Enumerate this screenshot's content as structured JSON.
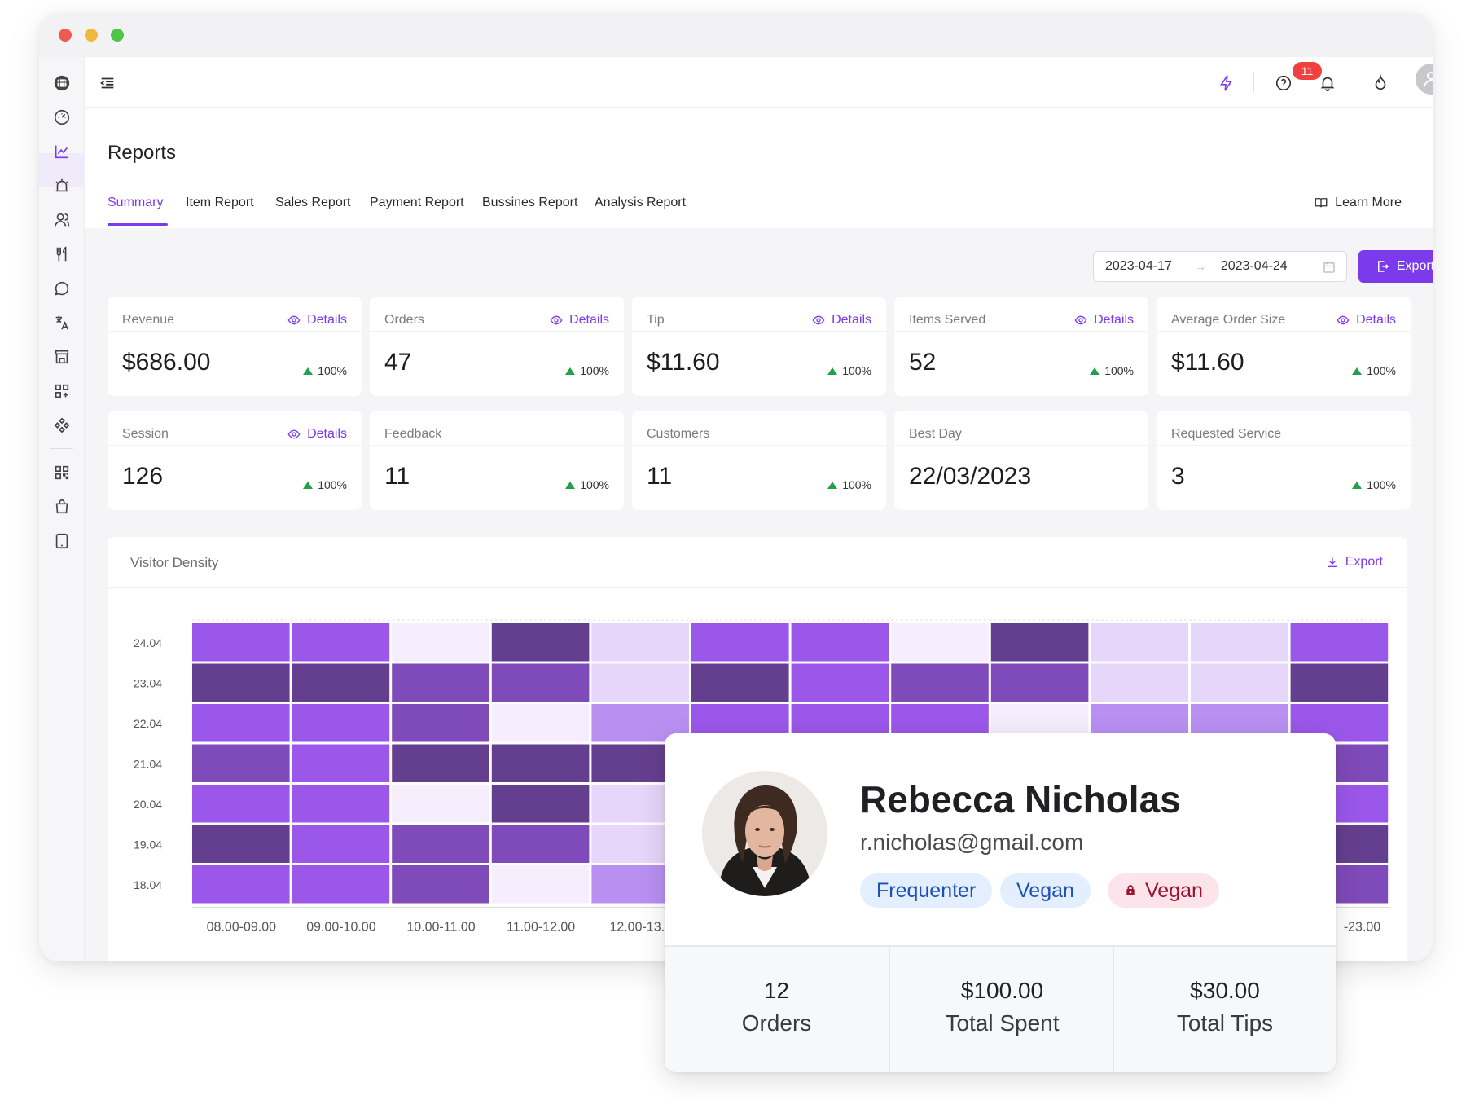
{
  "header": {
    "page_title": "Reports",
    "tabs": [
      {
        "label": "Summary",
        "active": true
      },
      {
        "label": "Item Report"
      },
      {
        "label": "Sales Report"
      },
      {
        "label": "Payment Report"
      },
      {
        "label": "Bussines Report"
      },
      {
        "label": "Analysis Report"
      }
    ],
    "learn_more": "Learn More"
  },
  "topbar": {
    "notification_count": "11",
    "icons": [
      "menu-collapse-icon",
      "lightning-icon",
      "help-circle-icon",
      "bell-icon",
      "flame-icon",
      "user-avatar-icon"
    ]
  },
  "sidebar": {
    "icons": [
      "logo-icon",
      "dashboard-gauge-icon",
      "chart-line-icon",
      "alarm-icon",
      "users-icon",
      "utensils-icon",
      "chat-icon",
      "translate-icon",
      "store-icon",
      "apps-grid-icon",
      "puzzle-icon",
      "qr-code-icon",
      "shopping-bag-icon",
      "tablet-icon"
    ],
    "active_index": 2
  },
  "filters": {
    "date_start": "2023-04-17",
    "date_end": "2023-04-24",
    "export_label": "Export"
  },
  "cards": [
    {
      "label": "Revenue",
      "value": "$686.00",
      "change": "100%",
      "details": "Details"
    },
    {
      "label": "Orders",
      "value": "47",
      "change": "100%",
      "details": "Details"
    },
    {
      "label": "Tip",
      "value": "$11.60",
      "change": "100%",
      "details": "Details"
    },
    {
      "label": "Items Served",
      "value": "52",
      "change": "100%",
      "details": "Details"
    },
    {
      "label": "Average Order Size",
      "value": "$11.60",
      "change": "100%",
      "details": "Details"
    },
    {
      "label": "Session",
      "value": "126",
      "change": "100%",
      "details": "Details"
    },
    {
      "label": "Feedback",
      "value": "11",
      "change": "100%"
    },
    {
      "label": "Customers",
      "value": "11",
      "change": "100%"
    },
    {
      "label": "Best Day",
      "value": "22/03/2023"
    },
    {
      "label": "Requested Service",
      "value": "3",
      "change": "100%"
    }
  ],
  "heatmap": {
    "title": "Visitor Density",
    "export_label": "Export"
  },
  "chart_data": {
    "type": "heatmap",
    "title": "Visitor Density",
    "x_labels_visible": [
      "08.00-09.00",
      "09.00-10.00",
      "10.00-11.00",
      "11.00-12.00",
      "12.00-13.0",
      "-23.00"
    ],
    "y_labels": [
      "24.04",
      "23.04",
      "22.04",
      "21.04",
      "20.04",
      "19.04",
      "18.04"
    ],
    "intensity_scale": "0 (lightest) to 5 (darkest)",
    "values": [
      [
        3,
        3,
        0,
        5,
        1,
        3,
        3,
        0,
        5,
        1,
        1,
        3
      ],
      [
        5,
        5,
        4,
        4,
        1,
        5,
        3,
        4,
        4,
        1,
        1,
        5
      ],
      [
        3,
        3,
        4,
        0,
        2,
        3,
        3,
        3,
        0,
        2,
        2,
        3
      ],
      [
        4,
        3,
        5,
        5,
        5,
        0,
        0,
        0,
        0,
        0,
        0,
        4
      ],
      [
        3,
        3,
        0,
        5,
        1,
        0,
        0,
        0,
        0,
        0,
        0,
        3
      ],
      [
        5,
        3,
        4,
        4,
        1,
        0,
        0,
        0,
        0,
        0,
        0,
        5
      ],
      [
        3,
        3,
        4,
        0,
        2,
        0,
        0,
        0,
        0,
        0,
        0,
        4
      ]
    ],
    "colors": [
      "#f6eefd",
      "#e6d6fa",
      "#b990f2",
      "#9b57ea",
      "#7f4ab9",
      "#653f8f"
    ]
  },
  "profile": {
    "name": "Rebecca Nicholas",
    "email": "r.nicholas@gmail.com",
    "tags": [
      {
        "label": "Frequenter",
        "style": "blue"
      },
      {
        "label": "Vegan",
        "style": "blue"
      },
      {
        "label": "Vegan",
        "style": "red"
      }
    ],
    "stats": [
      {
        "value": "12",
        "label": "Orders"
      },
      {
        "value": "$100.00",
        "label": "Total Spent"
      },
      {
        "value": "$30.00",
        "label": "Total Tips"
      }
    ]
  },
  "colors": {
    "accent": "#7c3aed",
    "positive": "#22a04b",
    "badge": "#f04040"
  }
}
